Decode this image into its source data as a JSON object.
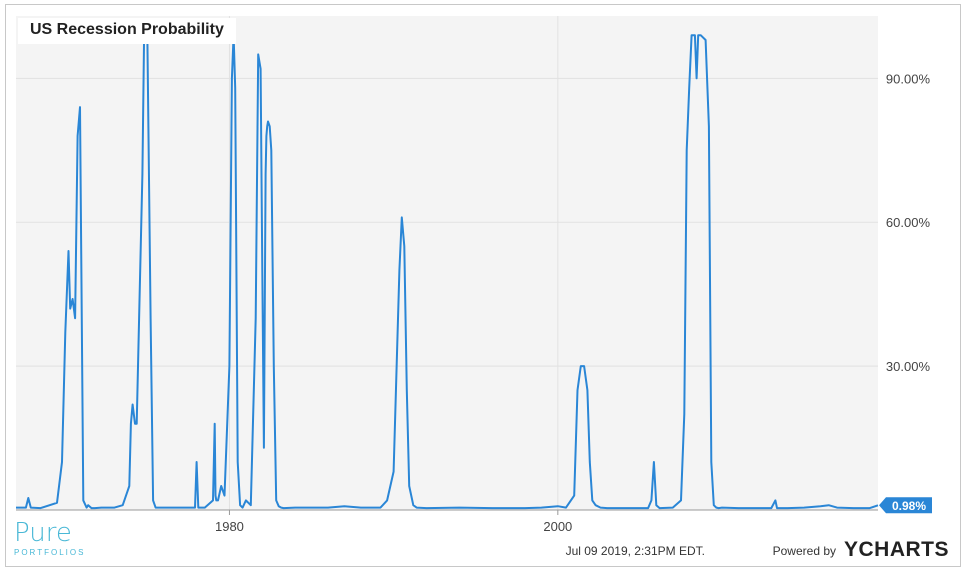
{
  "chart_data": {
    "type": "line",
    "title": "US Recession Probability",
    "xlabel": "",
    "ylabel": "",
    "xlim": [
      1967,
      2019.5
    ],
    "ylim": [
      0,
      103
    ],
    "x_ticks": [
      1980,
      2000
    ],
    "y_ticks": [
      30,
      60,
      90
    ],
    "y_tick_labels": [
      "30.00%",
      "60.00%",
      "90.00%"
    ],
    "grid": true,
    "last_value_label": "0.98%",
    "series": [
      {
        "color": "#2a86d6",
        "x": [
          1967.0,
          1967.6,
          1967.75,
          1967.9,
          1968.5,
          1969.5,
          1969.8,
          1970.0,
          1970.2,
          1970.3,
          1970.45,
          1970.6,
          1970.75,
          1970.9,
          1971.1,
          1971.3,
          1971.4,
          1971.6,
          1971.8,
          1972.2,
          1973.0,
          1973.5,
          1973.9,
          1974.0,
          1974.1,
          1974.25,
          1974.35,
          1974.5,
          1974.7,
          1974.8,
          1974.9,
          1975.0,
          1975.2,
          1975.35,
          1975.5,
          1975.65,
          1976.0,
          1977.0,
          1977.9,
          1978.0,
          1978.1,
          1978.5,
          1979.0,
          1979.1,
          1979.15,
          1979.2,
          1979.3,
          1979.5,
          1979.7,
          1980.0,
          1980.15,
          1980.25,
          1980.35,
          1980.5,
          1980.65,
          1980.8,
          1981.0,
          1981.3,
          1981.6,
          1981.75,
          1981.9,
          1982.0,
          1982.1,
          1982.2,
          1982.25,
          1982.3,
          1982.35,
          1982.45,
          1982.55,
          1982.7,
          1982.85,
          1983.0,
          1983.15,
          1983.3,
          1984.0,
          1986.0,
          1987.0,
          1988.0,
          1989.2,
          1989.6,
          1990.0,
          1990.35,
          1990.5,
          1990.65,
          1990.8,
          1990.95,
          1991.2,
          1991.4,
          1992.0,
          1994.0,
          1996.0,
          1998.0,
          1999.0,
          2000.0,
          2000.5,
          2001.0,
          2001.2,
          2001.4,
          2001.6,
          2001.8,
          2001.95,
          2002.1,
          2002.3,
          2002.6,
          2003.0,
          2004.0,
          2005.5,
          2005.7,
          2005.85,
          2006.0,
          2006.2,
          2007.0,
          2007.5,
          2007.7,
          2007.85,
          2008.0,
          2008.15,
          2008.35,
          2008.45,
          2008.55,
          2008.7,
          2009.0,
          2009.2,
          2009.35,
          2009.5,
          2009.65,
          2009.8,
          2010.0,
          2011.0,
          2013.0,
          2013.25,
          2013.35,
          2013.5,
          2014.0,
          2015.0,
          2016.0,
          2016.5,
          2017.0,
          2018.0,
          2019.0,
          2019.5
        ],
        "y": [
          0.5,
          0.5,
          2.5,
          0.5,
          0.4,
          1.5,
          10,
          37,
          54,
          42,
          44,
          40,
          78,
          84,
          2,
          0.5,
          1,
          0.4,
          0.4,
          0.5,
          0.5,
          1,
          5,
          18,
          22,
          18,
          18,
          40,
          70,
          99,
          99,
          98,
          40,
          2,
          0.5,
          0.5,
          0.5,
          0.5,
          0.5,
          10,
          0.5,
          0.5,
          2,
          18,
          3,
          2,
          2,
          5,
          3,
          30,
          90,
          99,
          88,
          10,
          1,
          0.5,
          2,
          1,
          40,
          95,
          92,
          50,
          13,
          70,
          78,
          80,
          81,
          80,
          75,
          30,
          2,
          0.8,
          0.5,
          0.4,
          0.5,
          0.5,
          0.8,
          0.5,
          0.5,
          2,
          8,
          50,
          61,
          55,
          25,
          5,
          1,
          0.5,
          0.4,
          0.5,
          0.4,
          0.4,
          0.5,
          0.8,
          0.5,
          3,
          25,
          30,
          30,
          25,
          10,
          2,
          1,
          0.5,
          0.4,
          0.4,
          0.4,
          2,
          10,
          1,
          0.4,
          0.5,
          2,
          20,
          75,
          88,
          99,
          99,
          90,
          99,
          99,
          98,
          80,
          10,
          1,
          0.5,
          0.4,
          0.5,
          0.4,
          0.4,
          2,
          0.4,
          0.4,
          0.4,
          0.5,
          0.8,
          1,
          0.5,
          0.4,
          0.4,
          0.98
        ]
      }
    ]
  },
  "footer": {
    "timestamp": "Jul 09 2019, 2:31PM EDT.",
    "powered_by": "Powered by",
    "brand": "YCHARTS"
  },
  "logo": {
    "word": "Pure",
    "sub": "PORTFOLIOS"
  }
}
